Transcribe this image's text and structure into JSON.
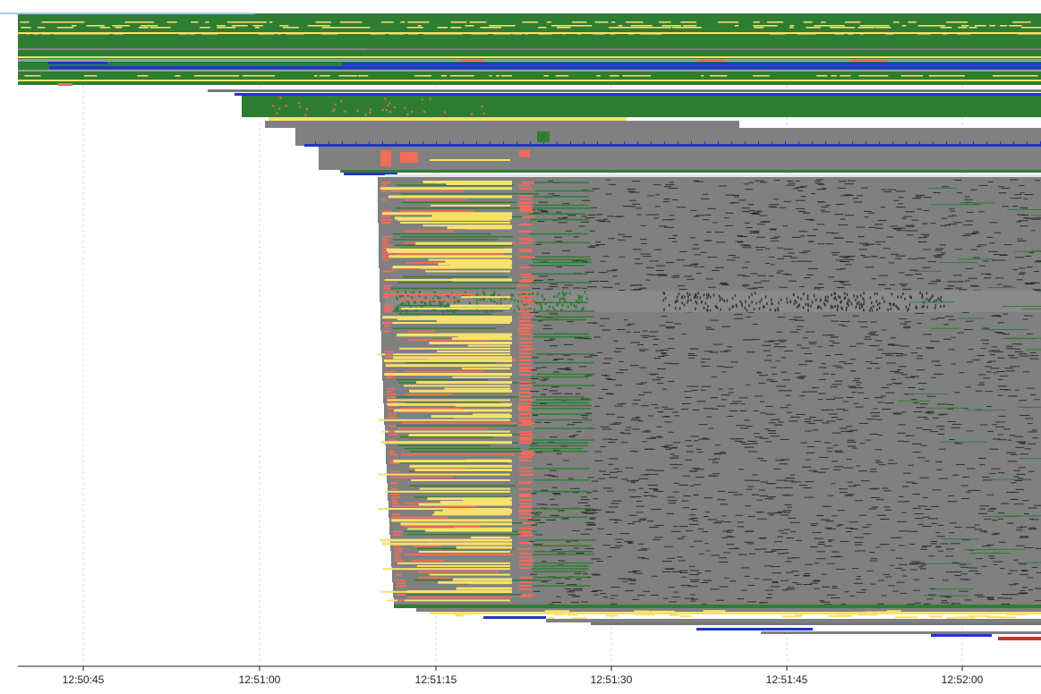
{
  "timeline": {
    "tick_labels": [
      "12:50:45",
      "12:51:00",
      "12:51:15",
      "12:51:30",
      "12:51:45",
      "12:52:00"
    ],
    "colors": {
      "background": "#ffffff",
      "running": "#808080",
      "success": "#2f7d32",
      "pending": "#f7e26b",
      "failed": "#f26b5b",
      "scheduled": "#2233cc",
      "error": "#c0392b",
      "axis": "#222222",
      "gridline": "#dddddd",
      "selection": "#9ecbf0"
    }
  }
}
